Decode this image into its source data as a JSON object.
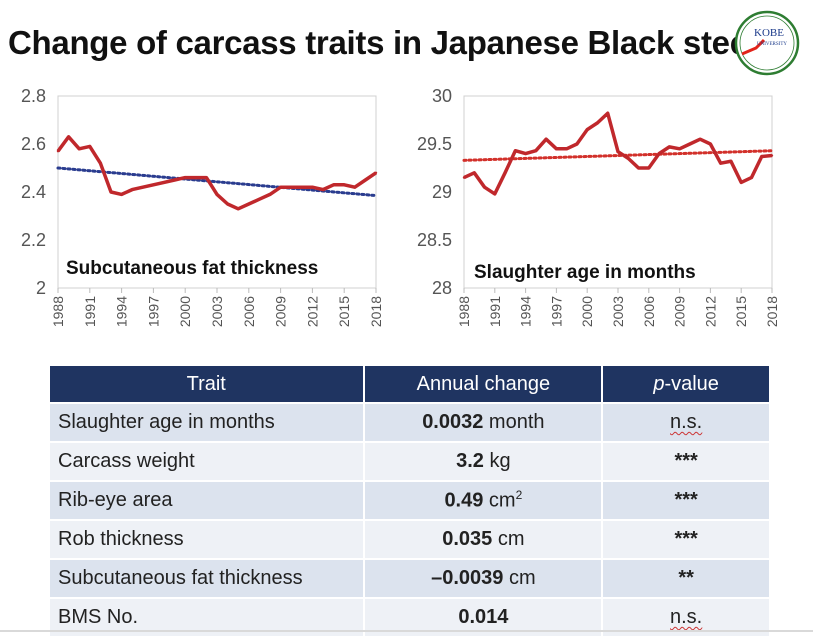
{
  "title": "Change of carcass traits in Japanese Black steers",
  "logo": {
    "line1": "KOBE",
    "line2": "UNIVERSITY",
    "icon": "kobe-university-logo"
  },
  "colors": {
    "series_line": "#c0282c",
    "trend_left": "#2a3c8f",
    "trend_right": "#d2302a",
    "header": "#1f3461",
    "row_odd": "#dce3ee",
    "row_even": "#eef1f6"
  },
  "chart_data": [
    {
      "type": "line",
      "title": "Subcutaneous fat thickness",
      "x": [
        1988,
        1989,
        1990,
        1991,
        1992,
        1993,
        1994,
        1995,
        1996,
        1997,
        1998,
        1999,
        2000,
        2001,
        2002,
        2003,
        2004,
        2005,
        2006,
        2007,
        2008,
        2009,
        2010,
        2011,
        2012,
        2013,
        2014,
        2015,
        2016,
        2017,
        2018
      ],
      "values": [
        2.57,
        2.63,
        2.58,
        2.59,
        2.52,
        2.4,
        2.39,
        2.41,
        2.42,
        2.43,
        2.44,
        2.45,
        2.46,
        2.46,
        2.46,
        2.39,
        2.35,
        2.33,
        2.35,
        2.37,
        2.39,
        2.42,
        2.42,
        2.42,
        2.42,
        2.41,
        2.43,
        2.43,
        2.42,
        2.45,
        2.48
      ],
      "trend": [
        2.5,
        2.385
      ],
      "xticks": [
        "1988",
        "1991",
        "1994",
        "1997",
        "2000",
        "2003",
        "2006",
        "2009",
        "2012",
        "2015",
        "2018"
      ],
      "yticks": [
        "2",
        "2.2",
        "2.4",
        "2.6",
        "2.8"
      ],
      "ylim": [
        2,
        2.8
      ]
    },
    {
      "type": "line",
      "title": "Slaughter age in months",
      "x": [
        1988,
        1989,
        1990,
        1991,
        1992,
        1993,
        1994,
        1995,
        1996,
        1997,
        1998,
        1999,
        2000,
        2001,
        2002,
        2003,
        2004,
        2005,
        2006,
        2007,
        2008,
        2009,
        2010,
        2011,
        2012,
        2013,
        2014,
        2015,
        2016,
        2017,
        2018
      ],
      "values": [
        29.15,
        29.2,
        29.05,
        28.98,
        29.2,
        29.43,
        29.4,
        29.43,
        29.55,
        29.45,
        29.45,
        29.5,
        29.65,
        29.72,
        29.82,
        29.42,
        29.35,
        29.25,
        29.25,
        29.4,
        29.47,
        29.45,
        29.5,
        29.55,
        29.5,
        29.3,
        29.32,
        29.1,
        29.15,
        29.37,
        29.38
      ],
      "trend": [
        29.33,
        29.43
      ],
      "xticks": [
        "1988",
        "1991",
        "1994",
        "1997",
        "2000",
        "2003",
        "2006",
        "2009",
        "2012",
        "2015",
        "2018"
      ],
      "yticks": [
        "28",
        "28.5",
        "29",
        "29.5",
        "30"
      ],
      "ylim": [
        28,
        30
      ]
    }
  ],
  "table": {
    "headers": {
      "trait": "Trait",
      "change": "Annual change",
      "p_prefix": "p",
      "p_suffix": "-value"
    },
    "rows": [
      {
        "trait": "Slaughter age in months",
        "value": "0.0032",
        "unit": " month",
        "p": "n.s."
      },
      {
        "trait": "Carcass weight",
        "value": "3.2",
        "unit": " kg",
        "p": "***"
      },
      {
        "trait": "Rib-eye area",
        "value": "0.49",
        "unit": " cm",
        "sup": "2",
        "p": "***"
      },
      {
        "trait": "Rob thickness",
        "value": "0.035",
        "unit": " cm",
        "p": "***"
      },
      {
        "trait": "Subcutaneous fat thickness",
        "value": "–0.0039",
        "unit": " cm",
        "p": "**"
      },
      {
        "trait": "BMS No.",
        "value": "0.014",
        "unit": "",
        "p": "n.s."
      }
    ]
  }
}
